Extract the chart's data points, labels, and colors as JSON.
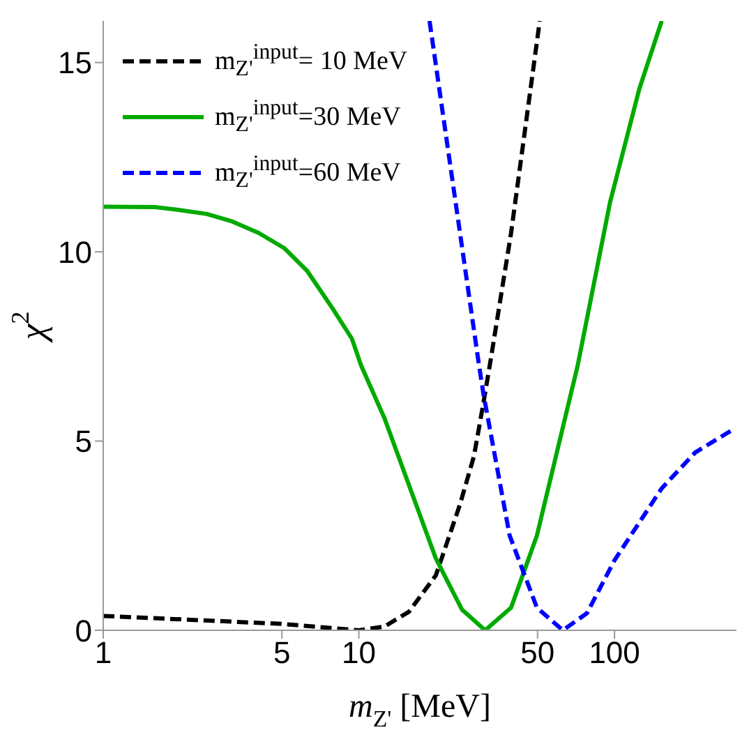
{
  "chart_data": {
    "type": "line",
    "xlabel": "m$_{Z'}$ [MeV]",
    "ylabel": "χ$^{2}$",
    "log": "x",
    "xlim": [
      1,
      300
    ],
    "xticks": [
      1,
      5,
      10,
      50,
      100
    ],
    "ylim": [
      0,
      16.1
    ],
    "yticks": [
      0,
      5,
      10,
      15
    ],
    "grid": false,
    "legend": "top left",
    "marker": "none",
    "series": [
      {
        "name": "m$_{Z'}$$^{input}$= 10 MeV",
        "color": "#000000",
        "line_style": "dashed",
        "x": [
          1,
          4.97,
          10,
          12.6,
          15.7,
          20,
          24.8,
          28.2,
          30.7,
          32.7,
          39.4,
          51
        ],
        "values": [
          0.38,
          0.17,
          0,
          0.1,
          0.49,
          1.45,
          3.3,
          4.6,
          6,
          7.1,
          10.5,
          16.1
        ]
      },
      {
        "name": "m$_{Z'}$$^{input}$=30 MeV",
        "color": "#00aa00",
        "line_style": "solid",
        "x": [
          1,
          1.59,
          2.01,
          2.54,
          3.2,
          4.05,
          5.1,
          6.27,
          7.9,
          9.4,
          10.2,
          12.6,
          20,
          25.3,
          31.2,
          39.4,
          49.7,
          71.8,
          96,
          125,
          153
        ],
        "values": [
          11.19,
          11.18,
          11.1,
          11,
          10.8,
          10.5,
          10.1,
          9.5,
          8.5,
          7.7,
          7,
          5.6,
          1.9,
          0.55,
          0,
          0.6,
          2.5,
          7,
          11.3,
          14.3,
          16.1
        ]
      },
      {
        "name": "m$_{Z'}$$^{input}$=60 MeV",
        "color": "#0000ff",
        "line_style": "dashed",
        "x": [
          18.9,
          29.3,
          30.7,
          38.9,
          49.7,
          62.8,
          78,
          100,
          153,
          207,
          290
        ],
        "values": [
          16.1,
          7.15,
          6.25,
          2.5,
          0.6,
          0,
          0.45,
          1.85,
          3.75,
          4.7,
          5.3
        ]
      }
    ]
  }
}
